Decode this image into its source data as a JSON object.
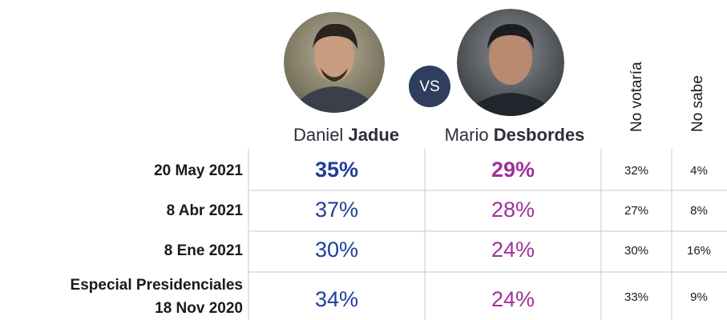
{
  "header": {
    "candidate_1": {
      "first_name": "Daniel",
      "last_name": "Jadue"
    },
    "versus": "VS",
    "candidate_2": {
      "first_name": "Mario",
      "last_name": "Desbordes"
    },
    "column_3": "No votaría",
    "column_4": "No sabe"
  },
  "rows": [
    {
      "label": "20 May 2021",
      "values": [
        "35%",
        "29%",
        "32%",
        "4%"
      ]
    },
    {
      "label": "8 Abr 2021",
      "values": [
        "37%",
        "28%",
        "27%",
        "8%"
      ]
    },
    {
      "label": "8 Ene 2021",
      "values": [
        "30%",
        "24%",
        "30%",
        "16%"
      ]
    },
    {
      "label_top": "Especial Presidenciales",
      "label": "18 Nov 2020",
      "values": [
        "34%",
        "24%",
        "33%",
        "9%"
      ]
    }
  ]
}
